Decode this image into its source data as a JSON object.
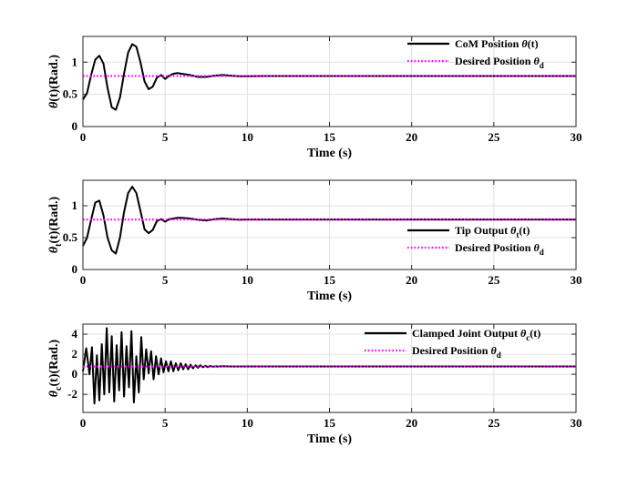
{
  "chart_data": [
    {
      "type": "line",
      "xlabel": "Time (s)",
      "ylabel": {
        "main": "θ(t)",
        "unit": "(Rad.)"
      },
      "xlim": [
        0,
        30
      ],
      "ylim": [
        0,
        1.4
      ],
      "xticks": [
        "0",
        "5",
        "10",
        "15",
        "20",
        "25",
        "30"
      ],
      "yticks": [
        "0",
        "0.5",
        "1"
      ],
      "grid": true,
      "legend_position": "top-right",
      "series": [
        {
          "name": "CoM Position θ(t)",
          "color": "#000000",
          "style": "solid",
          "x": [
            0,
            0.25,
            0.5,
            0.75,
            1.0,
            1.25,
            1.5,
            1.75,
            2.0,
            2.25,
            2.5,
            2.75,
            3.0,
            3.25,
            3.5,
            3.75,
            4.0,
            4.25,
            4.5,
            4.75,
            5.0,
            5.25,
            5.5,
            5.75,
            6.0,
            6.5,
            7.0,
            7.5,
            8.0,
            8.5,
            9.0,
            9.5,
            10.0,
            11.0,
            12.0,
            15.0,
            20.0,
            25.0,
            30.0
          ],
          "y": [
            0.42,
            0.52,
            0.8,
            1.04,
            1.1,
            0.98,
            0.6,
            0.3,
            0.26,
            0.45,
            0.82,
            1.15,
            1.28,
            1.24,
            1.0,
            0.7,
            0.58,
            0.62,
            0.76,
            0.8,
            0.74,
            0.79,
            0.82,
            0.83,
            0.82,
            0.8,
            0.77,
            0.77,
            0.79,
            0.8,
            0.79,
            0.78,
            0.78,
            0.785,
            0.785,
            0.785,
            0.785,
            0.785,
            0.785
          ]
        },
        {
          "name": "Desired Position θd",
          "color": "#ff00ff",
          "style": "dotted",
          "x": [
            0,
            30
          ],
          "y": [
            0.785,
            0.785
          ]
        }
      ]
    },
    {
      "type": "line",
      "xlabel": "Time (s)",
      "ylabel": {
        "main": "θt(t)",
        "unit": "(Rad.)"
      },
      "xlim": [
        0,
        30
      ],
      "ylim": [
        0,
        1.4
      ],
      "xticks": [
        "0",
        "5",
        "10",
        "15",
        "20",
        "25",
        "30"
      ],
      "yticks": [
        "0",
        "0.5",
        "1"
      ],
      "grid": true,
      "legend_position": "right",
      "series": [
        {
          "name": "Tip Output θt(t)",
          "color": "#000000",
          "style": "solid",
          "x": [
            0,
            0.25,
            0.5,
            0.75,
            1.0,
            1.25,
            1.5,
            1.75,
            2.0,
            2.25,
            2.5,
            2.75,
            3.0,
            3.25,
            3.5,
            3.75,
            4.0,
            4.25,
            4.5,
            4.75,
            5.0,
            5.25,
            5.5,
            5.75,
            6.0,
            6.5,
            7.0,
            7.5,
            8.0,
            8.5,
            9.0,
            9.5,
            10.0,
            11.0,
            12.0,
            15.0,
            20.0,
            25.0,
            30.0
          ],
          "y": [
            0.37,
            0.5,
            0.78,
            1.05,
            1.08,
            0.85,
            0.5,
            0.3,
            0.25,
            0.5,
            0.9,
            1.2,
            1.3,
            1.2,
            0.92,
            0.63,
            0.57,
            0.62,
            0.76,
            0.79,
            0.75,
            0.79,
            0.8,
            0.81,
            0.81,
            0.8,
            0.78,
            0.77,
            0.79,
            0.8,
            0.79,
            0.78,
            0.785,
            0.785,
            0.785,
            0.785,
            0.785,
            0.785,
            0.785
          ]
        },
        {
          "name": "Desired Position θd",
          "color": "#ff00ff",
          "style": "dotted",
          "x": [
            0,
            30
          ],
          "y": [
            0.785,
            0.785
          ]
        }
      ]
    },
    {
      "type": "line",
      "xlabel": "Time (s)",
      "ylabel": {
        "main": "θc(t)",
        "unit": "(Rad.)"
      },
      "xlim": [
        0,
        30
      ],
      "ylim": [
        -3.8,
        5.0
      ],
      "xticks": [
        "0",
        "5",
        "10",
        "15",
        "20",
        "25",
        "30"
      ],
      "yticks": [
        "-2",
        "0",
        "2",
        "4"
      ],
      "grid": true,
      "legend_position": "top-right",
      "series": [
        {
          "name": "Clamped Joint Output θc(t)",
          "color": "#000000",
          "style": "solid",
          "x": [
            0,
            0.2,
            0.4,
            0.55,
            0.7,
            0.85,
            1.0,
            1.15,
            1.3,
            1.45,
            1.6,
            1.75,
            1.9,
            2.05,
            2.2,
            2.35,
            2.5,
            2.65,
            2.8,
            2.95,
            3.1,
            3.25,
            3.4,
            3.55,
            3.7,
            3.85,
            4.0,
            4.15,
            4.3,
            4.45,
            4.6,
            4.75,
            4.9,
            5.05,
            5.2,
            5.35,
            5.5,
            5.65,
            5.8,
            5.95,
            6.1,
            6.25,
            6.4,
            6.55,
            6.7,
            6.85,
            7.0,
            7.15,
            7.3,
            7.45,
            7.6,
            7.75,
            7.9,
            8.05,
            8.2,
            8.5,
            9.0,
            10.0,
            15.0,
            20.0,
            25.0,
            30.0
          ],
          "y": [
            0.3,
            2.6,
            0.0,
            2.7,
            -2.9,
            1.9,
            -2.6,
            3.0,
            -2.0,
            4.6,
            -1.8,
            3.8,
            -2.7,
            2.9,
            -1.6,
            4.2,
            -2.2,
            2.8,
            -1.3,
            4.3,
            -2.8,
            1.8,
            -1.8,
            3.7,
            -0.5,
            2.5,
            0.1,
            2.3,
            -0.5,
            1.8,
            0.0,
            1.6,
            0.2,
            1.3,
            0.3,
            1.3,
            0.3,
            1.1,
            0.4,
            1.1,
            0.5,
            1.0,
            0.5,
            0.95,
            0.6,
            0.9,
            0.65,
            0.9,
            0.7,
            0.85,
            0.72,
            0.83,
            0.75,
            0.8,
            0.77,
            0.8,
            0.785,
            0.785,
            0.785,
            0.785,
            0.785,
            0.785
          ]
        },
        {
          "name": "Desired Position θd",
          "color": "#ff00ff",
          "style": "dotted",
          "x": [
            0,
            30
          ],
          "y": [
            0.785,
            0.785
          ]
        }
      ]
    }
  ]
}
